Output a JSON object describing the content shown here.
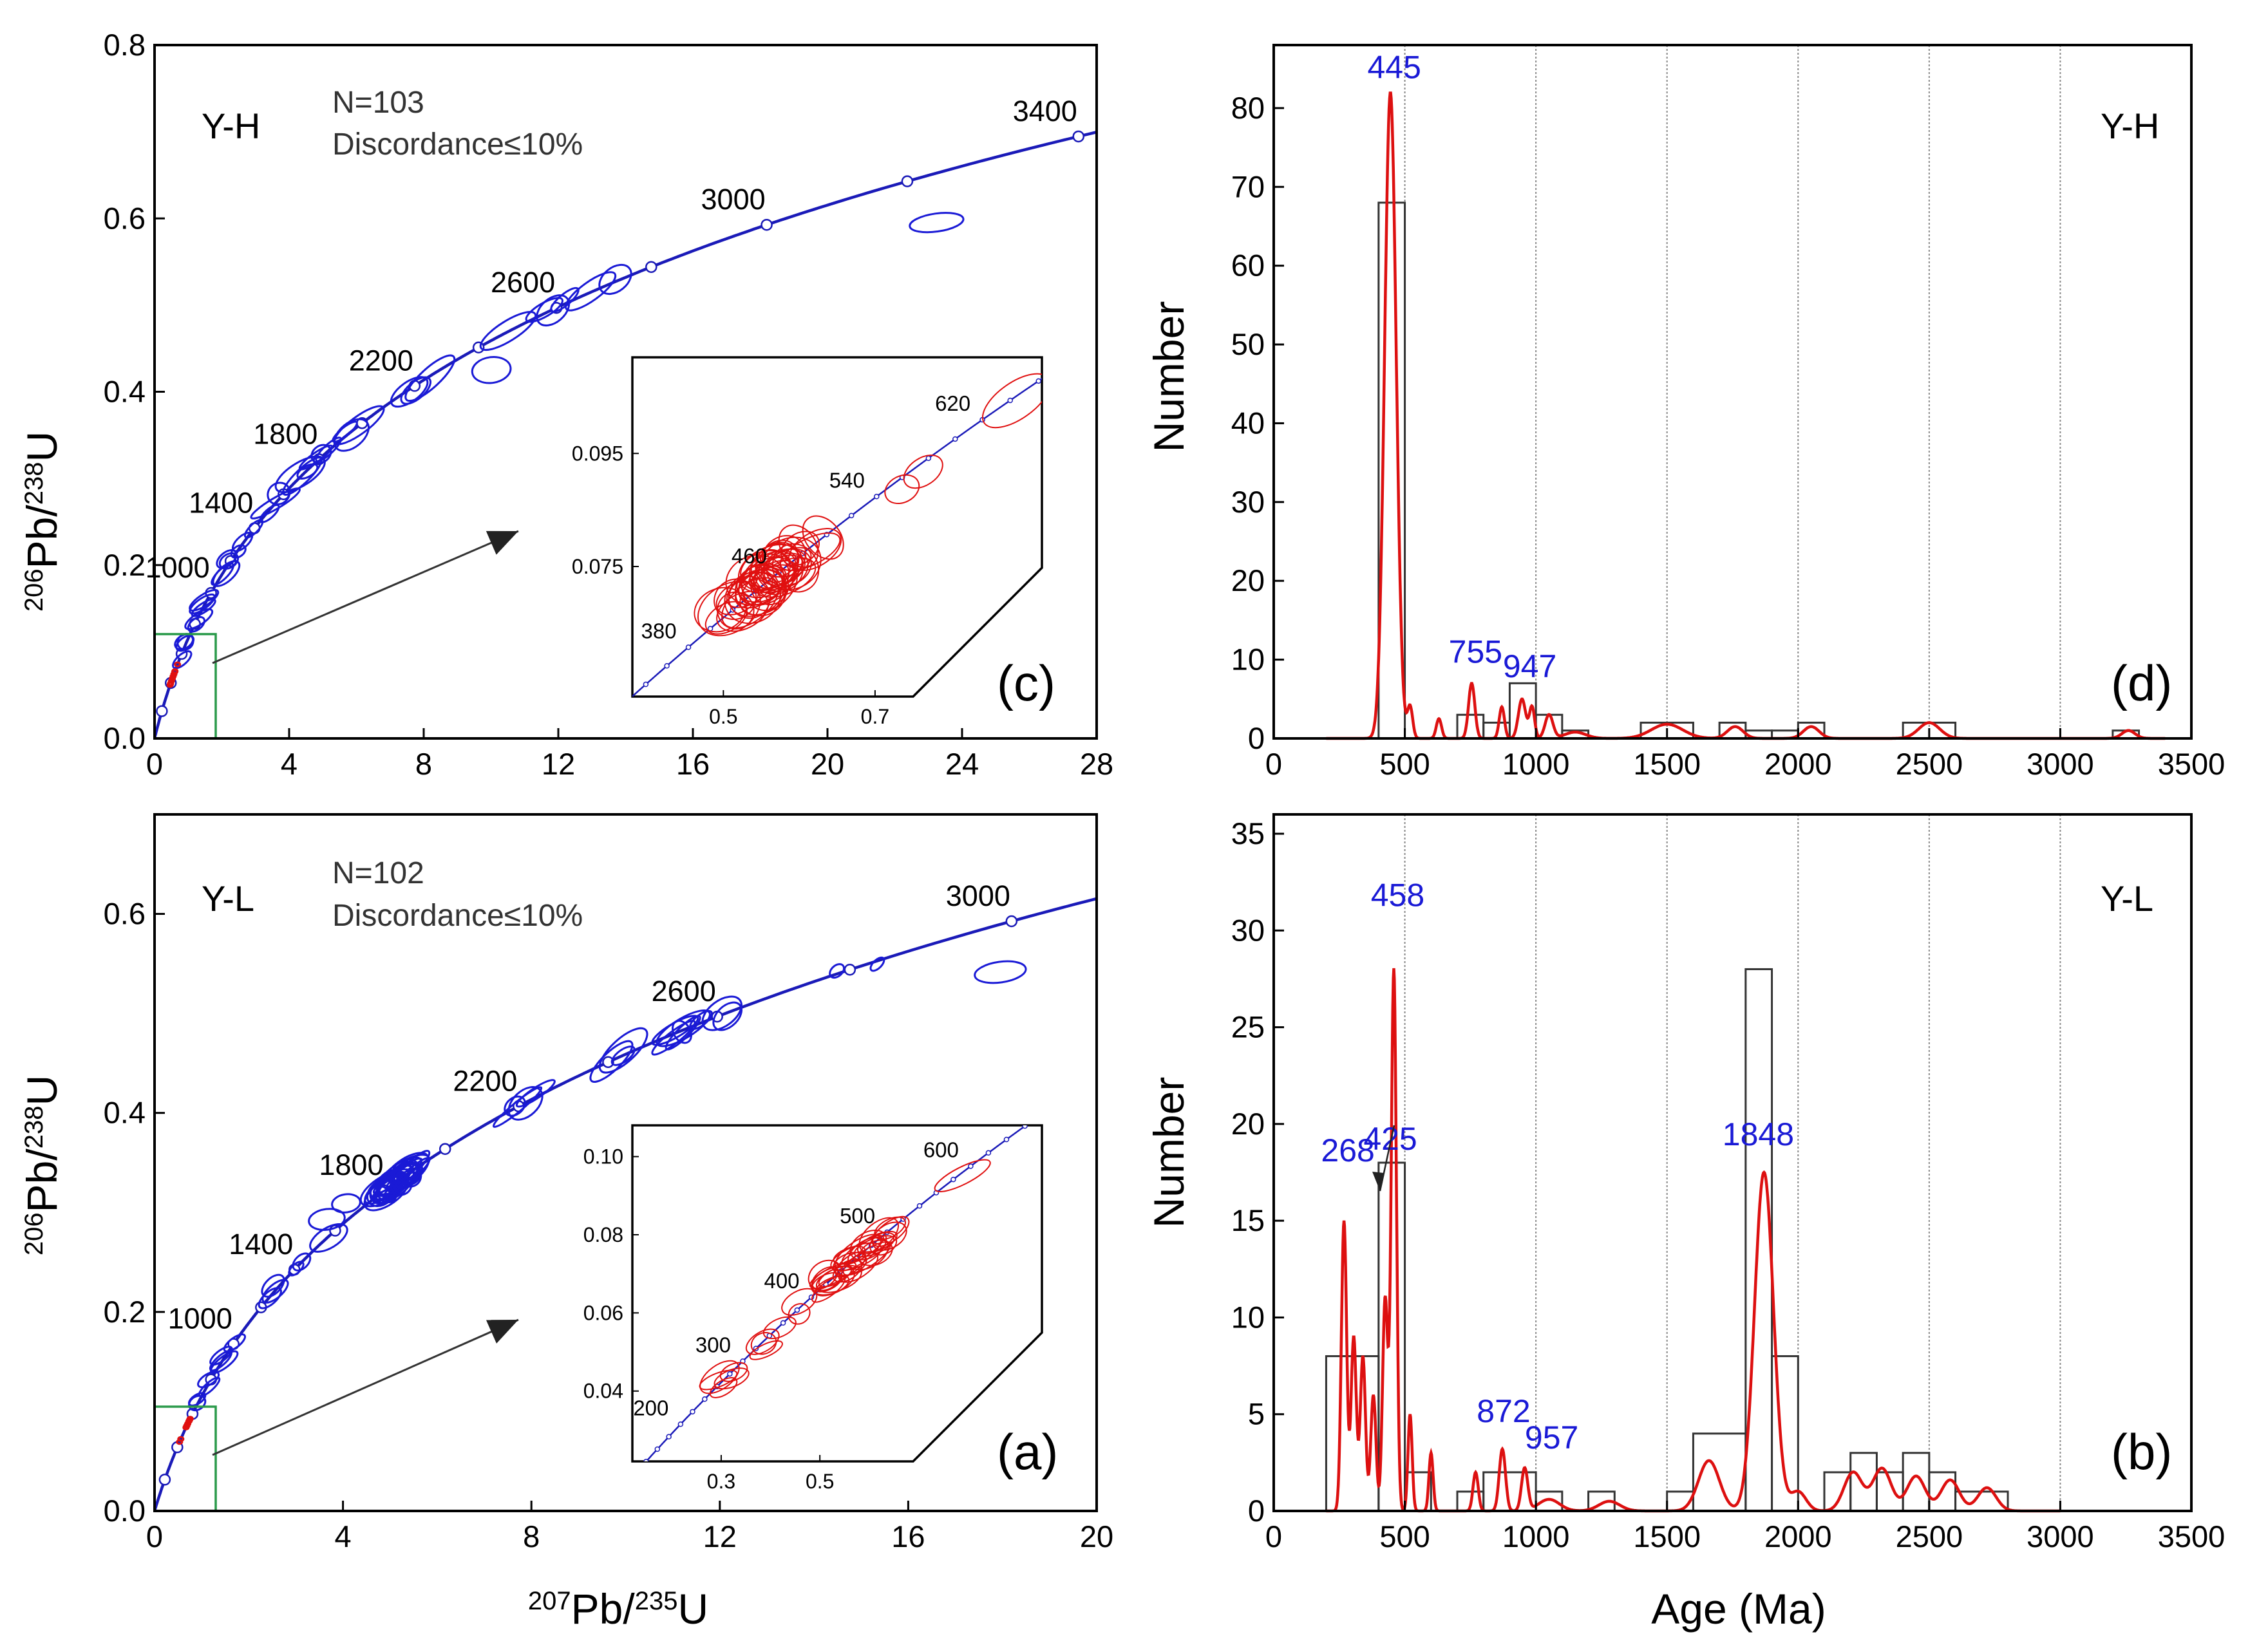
{
  "colors": {
    "concordia": "#1a1ab8",
    "ellipse_blue": "#1a1ad6",
    "ellipse_red": "#e01010",
    "kde_line": "#dd1010",
    "peak_label": "#1a1ad6",
    "inset_box": "#2a9a4a",
    "histogram_bar": "#333333",
    "grid": "#888888"
  },
  "chart_data": [
    {
      "id": "c",
      "type": "scatter",
      "panel_letter": "(c)",
      "sample": "Y-H",
      "n_label": "N=103",
      "discordance_label": "Discordance≤10%",
      "xlabel_parts": [
        "207",
        "Pb/",
        "235",
        "U"
      ],
      "ylabel_parts": [
        "206",
        "Pb/",
        "238",
        "U"
      ],
      "xlim": [
        0,
        28
      ],
      "ylim": [
        0,
        0.8
      ],
      "xticks": [
        "0",
        "4",
        "8",
        "12",
        "16",
        "20",
        "24",
        "28"
      ],
      "yticks": [
        "0.0",
        "0.2",
        "0.4",
        "0.6",
        "0.8"
      ],
      "concordia_age_labels": [
        "1000",
        "1400",
        "1800",
        "2200",
        "2600",
        "3000",
        "3400"
      ],
      "inset": {
        "xticks": [
          "0.5",
          "0.7"
        ],
        "yticks": [
          "0.075",
          "0.095"
        ],
        "age_labels": [
          "380",
          "460",
          "540",
          "620"
        ]
      }
    },
    {
      "id": "a",
      "type": "scatter",
      "panel_letter": "(a)",
      "sample": "Y-L",
      "n_label": "N=102",
      "discordance_label": "Discordance≤10%",
      "xlabel_parts": [
        "207",
        "Pb/",
        "235",
        "U"
      ],
      "ylabel_parts": [
        "206",
        "Pb/",
        "238",
        "U"
      ],
      "xlim": [
        0,
        20
      ],
      "ylim": [
        0,
        0.7
      ],
      "xticks": [
        "0",
        "4",
        "8",
        "12",
        "16",
        "20"
      ],
      "yticks": [
        "0.0",
        "0.2",
        "0.4",
        "0.6"
      ],
      "concordia_age_labels": [
        "1000",
        "1400",
        "1800",
        "2200",
        "2600",
        "3000"
      ],
      "inset": {
        "xticks": [
          "0.3",
          "0.5"
        ],
        "yticks": [
          "0.04",
          "0.06",
          "0.08",
          "0.10"
        ],
        "age_labels": [
          "200",
          "300",
          "400",
          "500",
          "600"
        ]
      }
    },
    {
      "id": "d",
      "type": "bar",
      "panel_letter": "(d)",
      "sample": "Y-H",
      "xlabel": "",
      "ylabel": "Number",
      "xlim": [
        0,
        3500
      ],
      "ylim": [
        0,
        88
      ],
      "xticks": [
        "0",
        "500",
        "1000",
        "1500",
        "2000",
        "2500",
        "3000",
        "3500"
      ],
      "yticks": [
        "0",
        "10",
        "20",
        "30",
        "40",
        "50",
        "60",
        "70",
        "80"
      ],
      "grid_x": [
        500,
        1000,
        1500,
        2000,
        2500,
        3000
      ],
      "bins": [
        {
          "x0": 400,
          "x1": 500,
          "count": 68
        },
        {
          "x0": 700,
          "x1": 800,
          "count": 3
        },
        {
          "x0": 800,
          "x1": 900,
          "count": 2
        },
        {
          "x0": 900,
          "x1": 1000,
          "count": 7
        },
        {
          "x0": 1000,
          "x1": 1100,
          "count": 3
        },
        {
          "x0": 1100,
          "x1": 1200,
          "count": 1
        },
        {
          "x0": 1400,
          "x1": 1600,
          "count": 2
        },
        {
          "x0": 1700,
          "x1": 1800,
          "count": 2
        },
        {
          "x0": 1800,
          "x1": 1900,
          "count": 1
        },
        {
          "x0": 1900,
          "x1": 2000,
          "count": 1
        },
        {
          "x0": 2000,
          "x1": 2100,
          "count": 2
        },
        {
          "x0": 2400,
          "x1": 2600,
          "count": 2
        },
        {
          "x0": 3200,
          "x1": 3300,
          "count": 1
        }
      ],
      "peaks": [
        {
          "label": "445",
          "age": 445,
          "value": 82
        },
        {
          "label": "755",
          "age": 755,
          "value": 7
        },
        {
          "label": "947",
          "age": 947,
          "value": 5
        }
      ]
    },
    {
      "id": "b",
      "type": "bar",
      "panel_letter": "(b)",
      "sample": "Y-L",
      "xlabel": "Age (Ma)",
      "ylabel": "Number",
      "xlim": [
        0,
        3500
      ],
      "ylim": [
        0,
        36
      ],
      "xticks": [
        "0",
        "500",
        "1000",
        "1500",
        "2000",
        "2500",
        "3000",
        "3500"
      ],
      "yticks": [
        "0",
        "5",
        "10",
        "15",
        "20",
        "25",
        "30",
        "35"
      ],
      "grid_x": [
        500,
        1000,
        1500,
        2000,
        2500,
        3000
      ],
      "bins": [
        {
          "x0": 200,
          "x1": 400,
          "count": 8
        },
        {
          "x0": 400,
          "x1": 500,
          "count": 18
        },
        {
          "x0": 500,
          "x1": 600,
          "count": 2
        },
        {
          "x0": 700,
          "x1": 800,
          "count": 1
        },
        {
          "x0": 800,
          "x1": 1000,
          "count": 2
        },
        {
          "x0": 1000,
          "x1": 1100,
          "count": 1
        },
        {
          "x0": 1200,
          "x1": 1300,
          "count": 1
        },
        {
          "x0": 1500,
          "x1": 1600,
          "count": 1
        },
        {
          "x0": 1600,
          "x1": 1800,
          "count": 4
        },
        {
          "x0": 1800,
          "x1": 1900,
          "count": 28
        },
        {
          "x0": 1900,
          "x1": 2000,
          "count": 8
        },
        {
          "x0": 2100,
          "x1": 2200,
          "count": 2
        },
        {
          "x0": 2200,
          "x1": 2300,
          "count": 3
        },
        {
          "x0": 2300,
          "x1": 2400,
          "count": 2
        },
        {
          "x0": 2400,
          "x1": 2500,
          "count": 3
        },
        {
          "x0": 2500,
          "x1": 2600,
          "count": 2
        },
        {
          "x0": 2600,
          "x1": 2800,
          "count": 1
        }
      ],
      "peaks": [
        {
          "label": "268",
          "age": 268,
          "value": 17
        },
        {
          "label": "425",
          "age": 425,
          "value": 16
        },
        {
          "label": "458",
          "age": 458,
          "value": 30
        },
        {
          "label": "872",
          "age": 872,
          "value": 3.4
        },
        {
          "label": "957",
          "age": 957,
          "value": 2.3
        },
        {
          "label": "1848",
          "age": 1848,
          "value": 17.5
        }
      ]
    }
  ]
}
